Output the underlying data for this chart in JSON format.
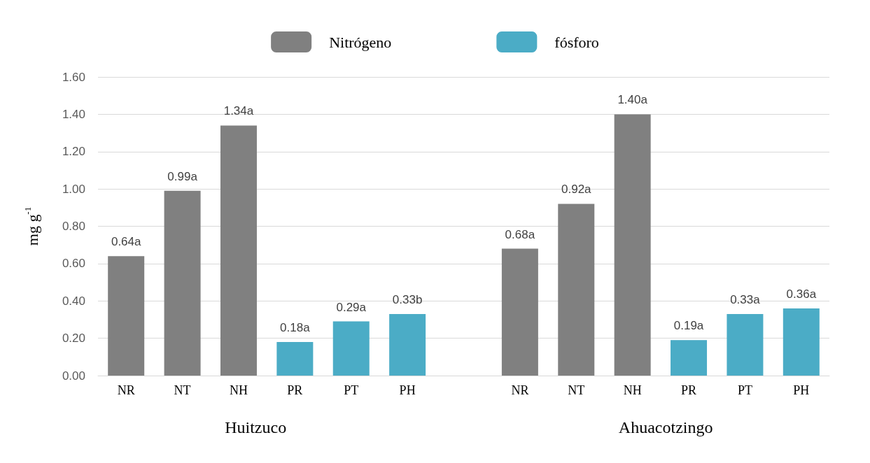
{
  "chart_data": {
    "type": "bar",
    "ylabel": "mg g$^{-1}$",
    "categories": [
      "NR",
      "NT",
      "NH",
      "PR",
      "PT",
      "PH",
      null,
      "NR",
      "NT",
      "NH",
      "PR",
      "PT",
      "PH"
    ],
    "series": [
      {
        "name": "Nitrógeno",
        "color": "#808080",
        "values": [
          0.64,
          0.99,
          1.34,
          null,
          null,
          null,
          null,
          0.68,
          0.92,
          1.4,
          null,
          null,
          null
        ],
        "value_labels": [
          "0.64a",
          "0.99a",
          "1.34a",
          null,
          null,
          null,
          null,
          "0.68a",
          "0.92a",
          "1.40a",
          null,
          null,
          null
        ]
      },
      {
        "name": "fósforo",
        "color": "#4bacc6",
        "values": [
          null,
          null,
          null,
          0.18,
          0.29,
          0.33,
          null,
          null,
          null,
          null,
          0.19,
          0.33,
          0.36
        ],
        "value_labels": [
          null,
          null,
          null,
          "0.18a",
          "0.29a",
          "0.33b",
          null,
          null,
          null,
          null,
          "0.19a",
          "0.33a",
          "0.36a"
        ]
      }
    ],
    "ylim": [
      0,
      1.6
    ],
    "yticks": [
      {
        "value": 0,
        "label": "0.00"
      },
      {
        "value": 0.2,
        "label": "0.20"
      },
      {
        "value": 0.4,
        "label": "0.40"
      },
      {
        "value": 0.6,
        "label": "0.60"
      },
      {
        "value": 0.8,
        "label": "0.80"
      },
      {
        "value": 1.0,
        "label": "1.00"
      },
      {
        "value": 1.2,
        "label": "1.20"
      },
      {
        "value": 1.4,
        "label": "1.40"
      },
      {
        "value": 1.6,
        "label": "1.60"
      }
    ],
    "annotations": [
      "Huitzuco",
      "Ahuacotzingo"
    ],
    "grid": "y",
    "legend": "top"
  }
}
